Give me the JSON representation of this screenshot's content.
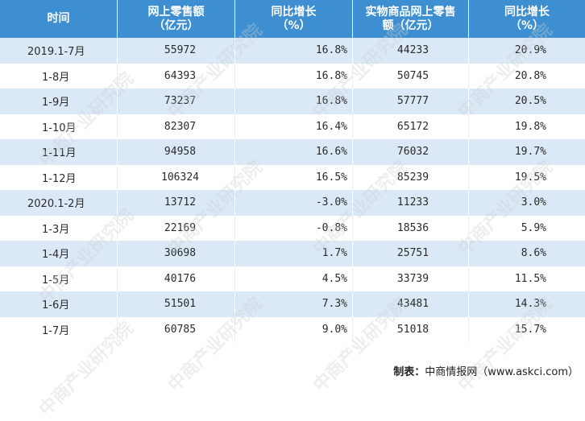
{
  "table": {
    "headers": [
      [
        "时间"
      ],
      [
        "网上零售额",
        "（亿元）"
      ],
      [
        "同比增长",
        "（%）"
      ],
      [
        "实物商品网上零售",
        "额（亿元）"
      ],
      [
        "同比增长",
        "（%）"
      ]
    ],
    "rows": [
      {
        "time": "2019.1-7月",
        "online_sales": "55972",
        "online_growth": "16.8%",
        "physical_sales": "44233",
        "physical_growth": "20.9%"
      },
      {
        "time": "1-8月",
        "online_sales": "64393",
        "online_growth": "16.8%",
        "physical_sales": "50745",
        "physical_growth": "20.8%"
      },
      {
        "time": "1-9月",
        "online_sales": "73237",
        "online_growth": "16.8%",
        "physical_sales": "57777",
        "physical_growth": "20.5%"
      },
      {
        "time": "1-10月",
        "online_sales": "82307",
        "online_growth": "16.4%",
        "physical_sales": "65172",
        "physical_growth": "19.8%"
      },
      {
        "time": "1-11月",
        "online_sales": "94958",
        "online_growth": "16.6%",
        "physical_sales": "76032",
        "physical_growth": "19.7%"
      },
      {
        "time": "1-12月",
        "online_sales": "106324",
        "online_growth": "16.5%",
        "physical_sales": "85239",
        "physical_growth": "19.5%"
      },
      {
        "time": "2020.1-2月",
        "online_sales": "13712",
        "online_growth": "-3.0%",
        "physical_sales": "11233",
        "physical_growth": "3.0%"
      },
      {
        "time": "1-3月",
        "online_sales": "22169",
        "online_growth": "-0.8%",
        "physical_sales": "18536",
        "physical_growth": "5.9%"
      },
      {
        "time": "1-4月",
        "online_sales": "30698",
        "online_growth": "1.7%",
        "physical_sales": "25751",
        "physical_growth": "8.6%"
      },
      {
        "time": "1-5月",
        "online_sales": "40176",
        "online_growth": "4.5%",
        "physical_sales": "33739",
        "physical_growth": "11.5%"
      },
      {
        "time": "1-6月",
        "online_sales": "51501",
        "online_growth": "7.3%",
        "physical_sales": "43481",
        "physical_growth": "14.3%"
      },
      {
        "time": "1-7月",
        "online_sales": "60785",
        "online_growth": "9.0%",
        "physical_sales": "51018",
        "physical_growth": "15.7%"
      }
    ]
  },
  "source": {
    "label": "制表：",
    "text": "中商情报网（www.askci.com）"
  },
  "watermark": {
    "text": "中商产业研究院"
  },
  "colors": {
    "header_bg": "#3d8fd1",
    "band_bg": "#dbe9f7"
  }
}
